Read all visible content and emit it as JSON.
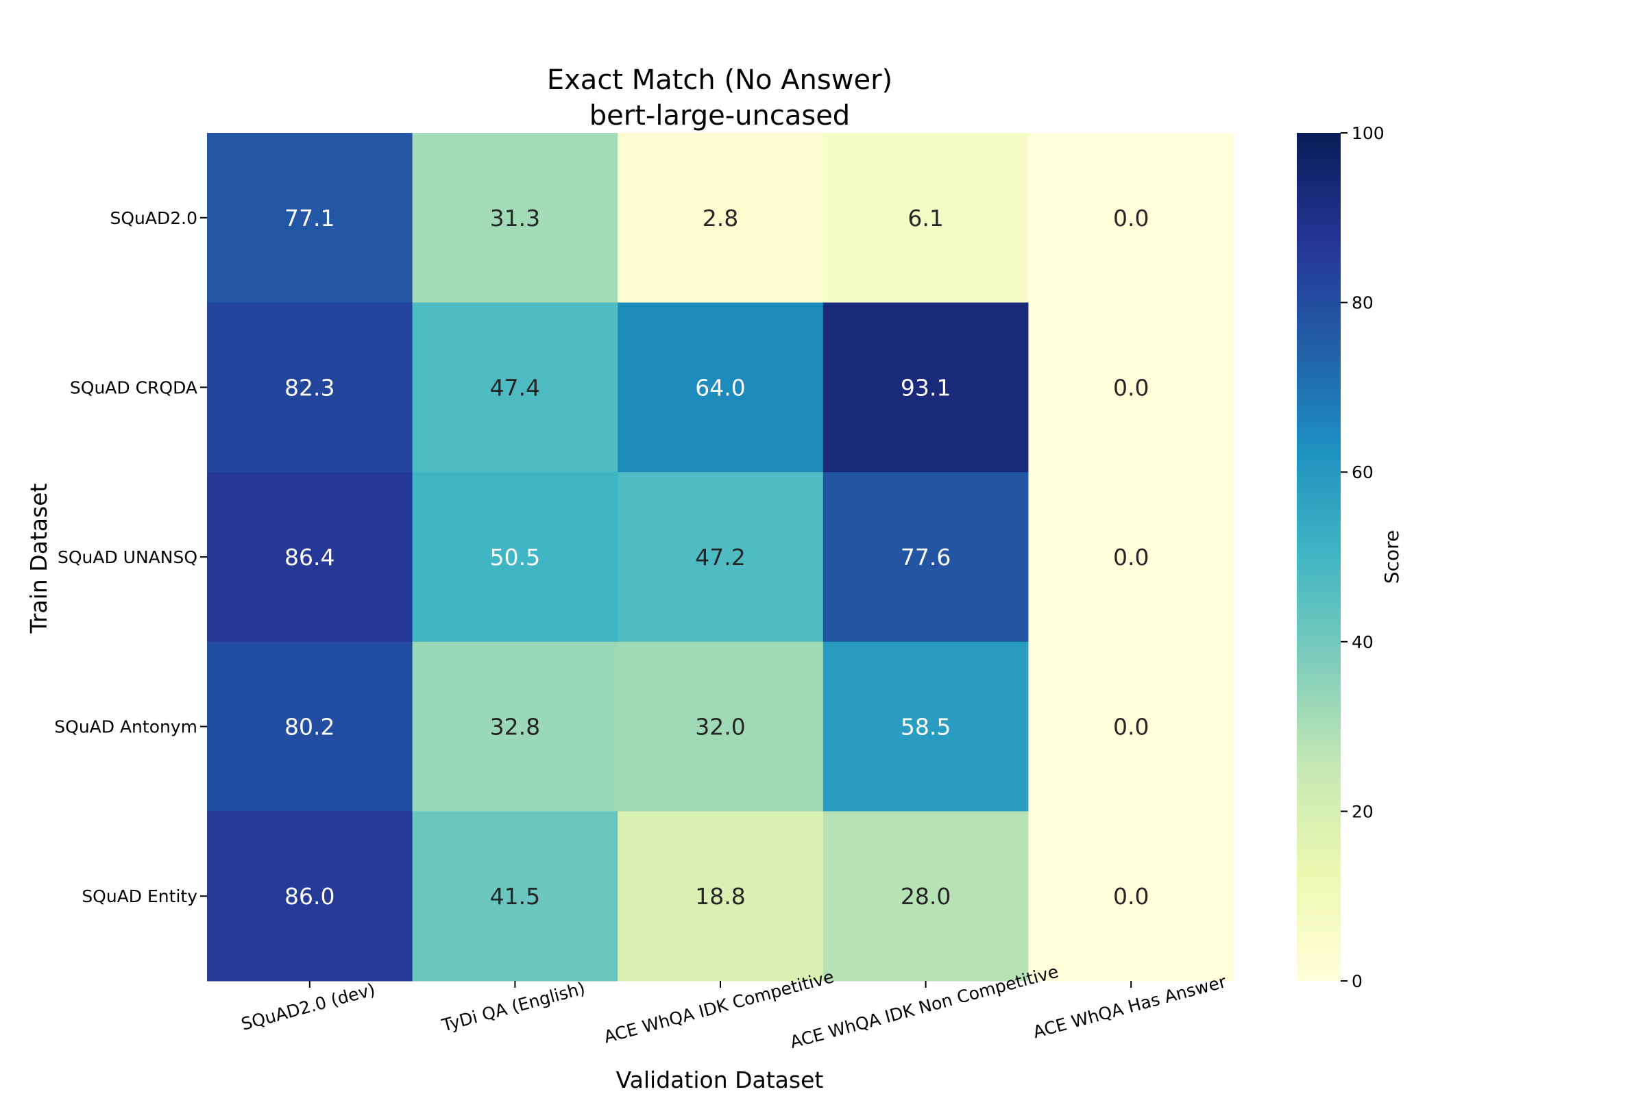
{
  "chart_data": {
    "type": "heatmap",
    "title": [
      "Exact Match (No Answer)",
      "bert-large-uncased"
    ],
    "xlabel": "Validation Dataset",
    "ylabel": "Train Dataset",
    "x_categories": [
      "SQuAD2.0 (dev)",
      "TyDi QA (English)",
      "ACE WhQA IDK Competitive",
      "ACE WhQA IDK Non Competitive",
      "ACE WhQA Has Answer"
    ],
    "y_categories": [
      "SQuAD2.0",
      "SQuAD CRQDA",
      "SQuAD UNANSQ",
      "SQuAD Antonym",
      "SQuAD Entity"
    ],
    "values": [
      [
        77.1,
        31.3,
        2.8,
        6.1,
        0.0
      ],
      [
        82.3,
        47.4,
        64.0,
        93.1,
        0.0
      ],
      [
        86.4,
        50.5,
        47.2,
        77.6,
        0.0
      ],
      [
        80.2,
        32.8,
        32.0,
        58.5,
        0.0
      ],
      [
        86.0,
        41.5,
        18.8,
        28.0,
        0.0
      ]
    ],
    "colorbar": {
      "label": "Score",
      "range": [
        0,
        100
      ],
      "ticks": [
        0,
        20,
        40,
        60,
        80,
        100
      ]
    },
    "colormap": "YlGnBu",
    "grid": false
  }
}
